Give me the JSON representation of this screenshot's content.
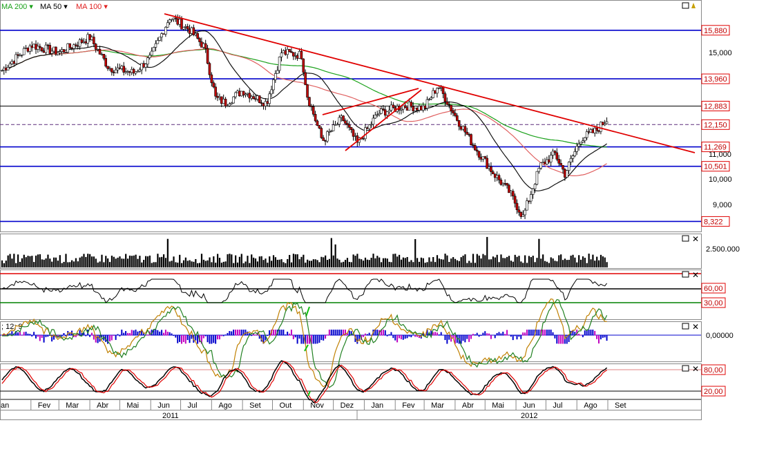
{
  "legend": [
    {
      "label": "MA 200",
      "color": "#18a018",
      "arrow": "▾"
    },
    {
      "label": "MA 50",
      "color": "#000000",
      "arrow": "▾"
    },
    {
      "label": "MA 100",
      "color": "#e02020",
      "arrow": "▾"
    }
  ],
  "rsi_marker_text": "/",
  "macd_params": "; 12; 9",
  "price_axis_ticks": [
    "15,000",
    "11,000",
    "10,000",
    "9,000"
  ],
  "price_levels": [
    {
      "label": "15,880",
      "price": 15880,
      "color": "#0000cc",
      "style": "solid"
    },
    {
      "label": "13,960",
      "price": 13960,
      "color": "#0000cc",
      "style": "solid"
    },
    {
      "label": "12,883",
      "price": 12883,
      "color": "#000000",
      "style": "thin"
    },
    {
      "label": "12,150",
      "price": 12150,
      "color": "#5a2a7a",
      "style": "dashed"
    },
    {
      "label": "11,269",
      "price": 11269,
      "color": "#0000cc",
      "style": "solid"
    },
    {
      "label": "10,501",
      "price": 10501,
      "color": "#0000cc",
      "style": "solid"
    },
    {
      "label": "8,322",
      "price": 8322,
      "color": "#0000cc",
      "style": "solid"
    }
  ],
  "volume_tick": "2.500.000",
  "rsi_levels": [
    "60,00",
    "30,00"
  ],
  "macd_tick": "0,00000",
  "stoch_levels": [
    "80,00",
    "20,00"
  ],
  "months": [
    "an",
    "Fev",
    "Mar",
    "Abr",
    "Mai",
    "Jun",
    "Jul",
    "Ago",
    "Set",
    "Out",
    "Nov",
    "Dez",
    "Jan",
    "Fev",
    "Mar",
    "Abr",
    "Mai",
    "Jun",
    "Jul",
    "Ago",
    "Set"
  ],
  "years": [
    "2011",
    "2012"
  ],
  "colors": {
    "up": "#000000",
    "down": "#c00000",
    "ma200": "#18a018",
    "ma50": "#111111",
    "ma100": "#e06060",
    "trend": "#e00000",
    "level": "#0000cc"
  },
  "chart_data": {
    "type": "candlestick",
    "series": [
      "MA 200",
      "MA 50",
      "MA 100"
    ],
    "ylim": [
      8000,
      16600
    ],
    "x_start": "2011-01",
    "x_end": "2012-09",
    "close_anchors": [
      {
        "date": "2011-01-03",
        "close": 14300
      },
      {
        "date": "2011-02-01",
        "close": 15300
      },
      {
        "date": "2011-03-01",
        "close": 15000
      },
      {
        "date": "2011-04-01",
        "close": 15600
      },
      {
        "date": "2011-04-20",
        "close": 14400
      },
      {
        "date": "2011-05-15",
        "close": 14200
      },
      {
        "date": "2011-06-01",
        "close": 14800
      },
      {
        "date": "2011-06-20",
        "close": 16400
      },
      {
        "date": "2011-07-10",
        "close": 15900
      },
      {
        "date": "2011-07-25",
        "close": 15200
      },
      {
        "date": "2011-08-05",
        "close": 13200
      },
      {
        "date": "2011-08-15",
        "close": 13000
      },
      {
        "date": "2011-09-01",
        "close": 13500
      },
      {
        "date": "2011-09-25",
        "close": 13000
      },
      {
        "date": "2011-10-10",
        "close": 15000
      },
      {
        "date": "2011-10-30",
        "close": 14900
      },
      {
        "date": "2011-11-05",
        "close": 13300
      },
      {
        "date": "2011-11-20",
        "close": 11500
      },
      {
        "date": "2011-12-10",
        "close": 12400
      },
      {
        "date": "2011-12-25",
        "close": 11400
      },
      {
        "date": "2012-01-15",
        "close": 12600
      },
      {
        "date": "2012-02-10",
        "close": 12900
      },
      {
        "date": "2012-03-01",
        "close": 12800
      },
      {
        "date": "2012-03-15",
        "close": 13700
      },
      {
        "date": "2012-04-01",
        "close": 12500
      },
      {
        "date": "2012-04-20",
        "close": 11300
      },
      {
        "date": "2012-05-10",
        "close": 10200
      },
      {
        "date": "2012-05-25",
        "close": 9500
      },
      {
        "date": "2012-06-08",
        "close": 8500
      },
      {
        "date": "2012-06-25",
        "close": 10500
      },
      {
        "date": "2012-07-10",
        "close": 11000
      },
      {
        "date": "2012-07-20",
        "close": 10200
      },
      {
        "date": "2012-08-05",
        "close": 11600
      },
      {
        "date": "2012-08-20",
        "close": 11900
      },
      {
        "date": "2012-09-01",
        "close": 12400
      }
    ]
  }
}
